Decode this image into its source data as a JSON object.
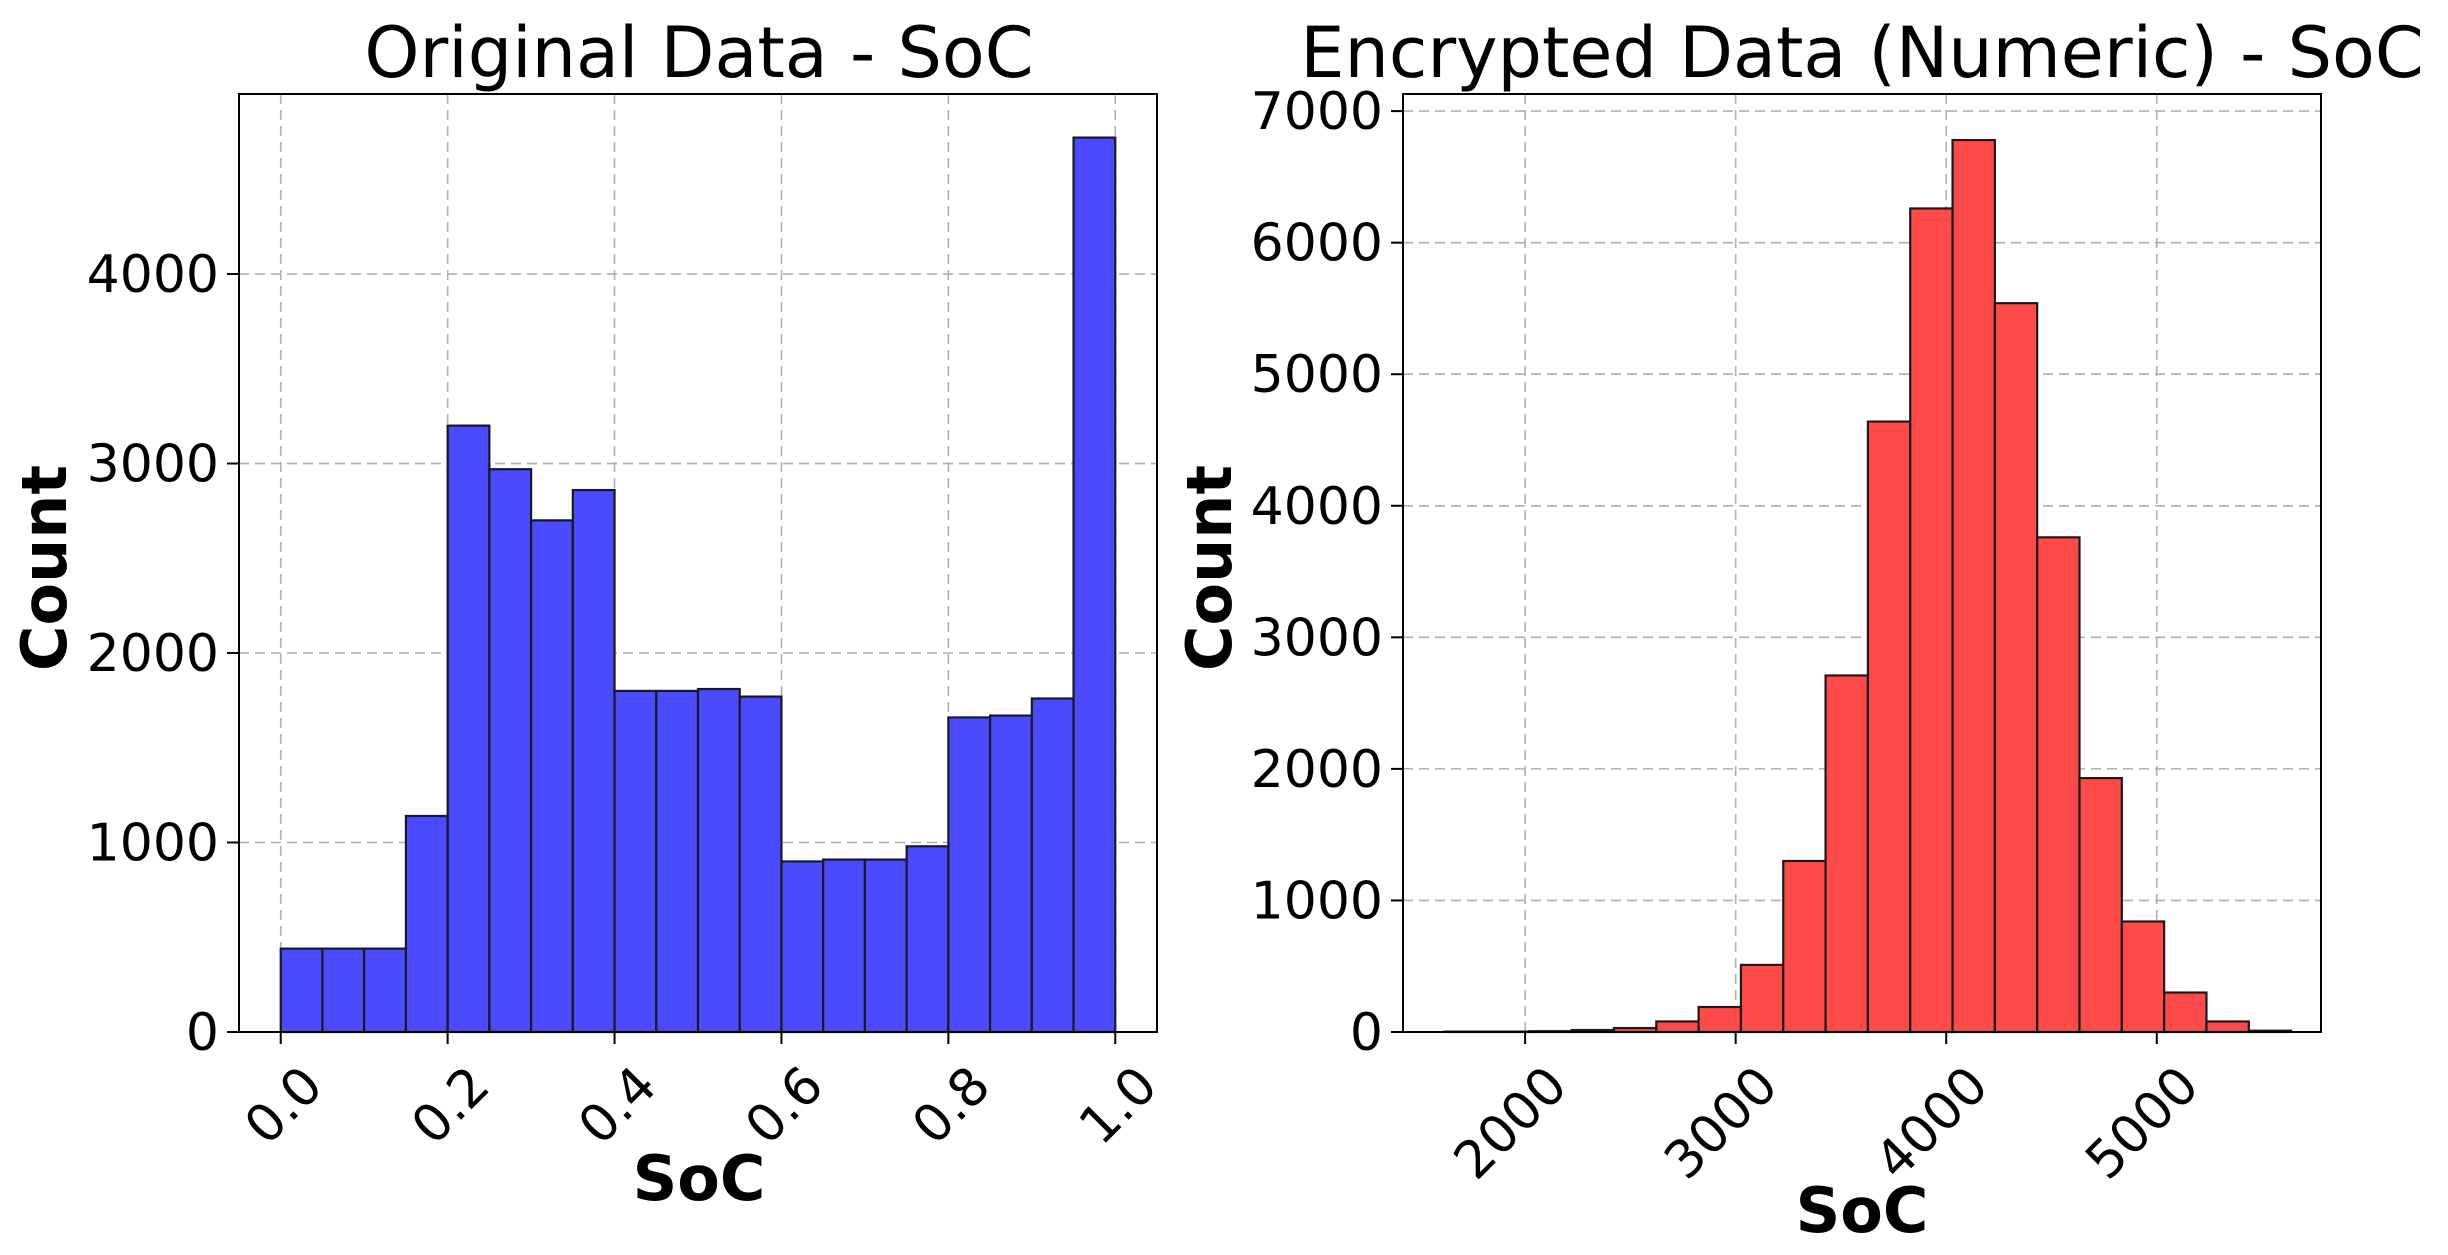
{
  "chart_data": [
    {
      "type": "bar",
      "title": "Original Data - SoC",
      "xlabel": "SoC",
      "ylabel": "Count",
      "color": "#4a4aff",
      "xlim": [
        -0.05,
        1.05
      ],
      "ylim": [
        0,
        4950
      ],
      "xticks": [
        0.0,
        0.2,
        0.4,
        0.6,
        0.8,
        1.0
      ],
      "xtick_labels": [
        "0.0",
        "0.2",
        "0.4",
        "0.6",
        "0.8",
        "1.0"
      ],
      "yticks": [
        0,
        1000,
        2000,
        3000,
        4000
      ],
      "ytick_labels": [
        "0",
        "1000",
        "2000",
        "3000",
        "4000"
      ],
      "xtick_rotation": 45,
      "grid": true,
      "bin_edges": [
        0.0,
        0.05,
        0.1,
        0.15,
        0.2,
        0.25,
        0.3,
        0.35,
        0.4,
        0.45,
        0.5,
        0.55,
        0.6,
        0.65,
        0.7,
        0.75,
        0.8,
        0.85,
        0.9,
        0.95,
        1.0
      ],
      "values": [
        440,
        440,
        440,
        1140,
        3200,
        2970,
        2700,
        2860,
        1800,
        1800,
        1810,
        1770,
        900,
        910,
        910,
        980,
        1660,
        1670,
        1760,
        4720
      ]
    },
    {
      "type": "bar",
      "title": "Encrypted Data (Numeric) - SoC",
      "xlabel": "SoC",
      "ylabel": "Count",
      "color": "#ff4a4a",
      "xlim": [
        1420,
        5780
      ],
      "ylim": [
        0,
        7130
      ],
      "xticks": [
        2000,
        3000,
        4000,
        5000
      ],
      "xtick_labels": [
        "2000",
        "3000",
        "4000",
        "5000"
      ],
      "yticks": [
        0,
        1000,
        2000,
        3000,
        4000,
        5000,
        6000,
        7000
      ],
      "ytick_labels": [
        "0",
        "1000",
        "2000",
        "3000",
        "4000",
        "5000",
        "6000",
        "7000"
      ],
      "xtick_rotation": 45,
      "grid": true,
      "bin_edges": [
        1618,
        1819,
        2020,
        2221,
        2422,
        2623,
        2824,
        3025,
        3226,
        3427,
        3628,
        3829,
        4030,
        4231,
        4432,
        4633,
        4834,
        5035,
        5236,
        5437,
        5638
      ],
      "values": [
        3,
        3,
        6,
        15,
        30,
        80,
        190,
        510,
        1300,
        2710,
        4640,
        6260,
        6780,
        5540,
        3760,
        1930,
        840,
        300,
        80,
        10
      ]
    }
  ]
}
